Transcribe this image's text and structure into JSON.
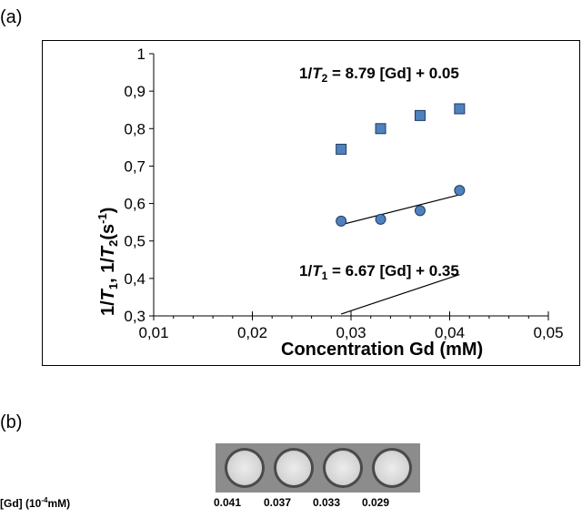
{
  "panel_labels": {
    "a": "(a)",
    "b": "(b)"
  },
  "chart_data": {
    "type": "scatter",
    "xlabel": "Concentration Gd (mM)",
    "ylabel": "1/T1, 1/T2(s-1)",
    "xlim": [
      0.01,
      0.05
    ],
    "ylim": [
      0.3,
      1.0
    ],
    "x_ticks": [
      "0,01",
      "0,02",
      "0,03",
      "0,04",
      "0,05"
    ],
    "y_ticks": [
      "0,3",
      "0,4",
      "0,5",
      "0,6",
      "0,7",
      "0,8",
      "0,9",
      "1"
    ],
    "grid": false,
    "series": [
      {
        "marker": "square",
        "color": "#4f81bd",
        "x": [
          0.029,
          0.033,
          0.037,
          0.041
        ],
        "y": [
          0.745,
          0.8,
          0.835,
          0.853
        ],
        "trendline": {
          "slope": 8.79,
          "intercept": 0.05
        },
        "equation": {
          "prefix": "1/",
          "var": "T",
          "sub": "2",
          "suffix": " = 8.79 [Gd] + 0.05"
        }
      },
      {
        "marker": "circle",
        "color": "#4f81bd",
        "x": [
          0.029,
          0.033,
          0.037,
          0.041
        ],
        "y": [
          0.553,
          0.558,
          0.581,
          0.635
        ],
        "trendline": {
          "slope": 6.67,
          "intercept": 0.35
        },
        "equation": {
          "prefix": "1/",
          "var": "T",
          "sub": "1",
          "suffix": " = 6.67 [Gd] + 0.35"
        }
      }
    ]
  },
  "panel_b": {
    "row_label": "[Gd] (10-4mM)",
    "concentrations": [
      "0.041",
      "0.037",
      "0.033",
      "0.029"
    ]
  }
}
